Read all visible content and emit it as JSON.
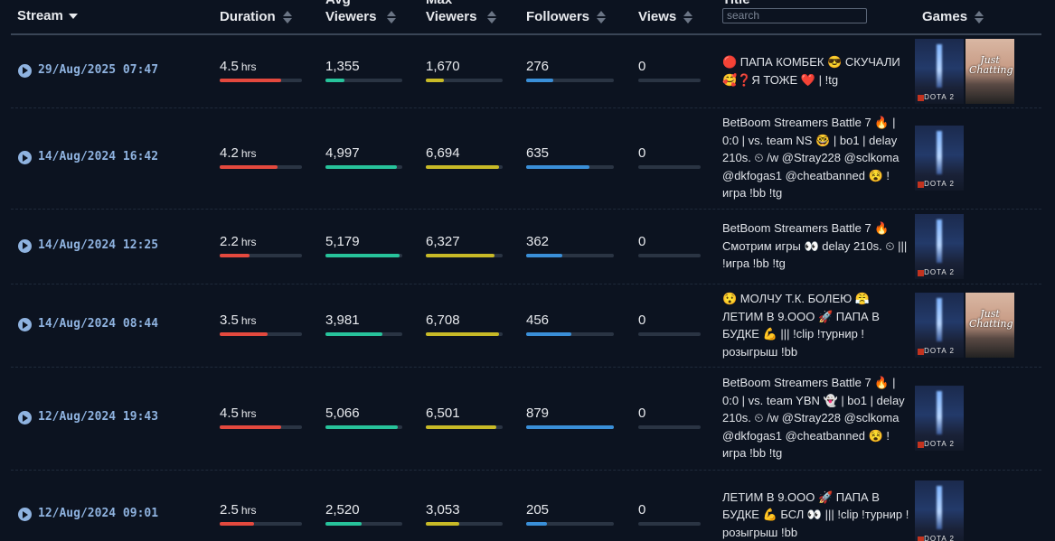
{
  "table": {
    "header": {
      "stream": "Stream",
      "duration": "Duration",
      "avg_viewers": "Avg Viewers",
      "max_viewers": "Max Viewers",
      "followers": "Followers",
      "views": "Views",
      "title": "Title",
      "search_placeholder": "search",
      "games": "Games"
    },
    "duration_unit": "hrs",
    "rows": [
      {
        "stream": "29/Aug/2025 07:47",
        "duration": 4.5,
        "avg_viewers": {
          "value": 1355,
          "label": "1,355"
        },
        "max_viewers": {
          "value": 1670,
          "label": "1,670"
        },
        "followers": 276,
        "views": 0,
        "title": "🔴 ПАПА КОМБЕК 😎 СКУЧАЛИ 🥰❓Я ТОЖЕ ❤️ | !tg",
        "games": [
          "DOTA 2",
          "Just Chatting"
        ]
      },
      {
        "stream": "14/Aug/2024 16:42",
        "duration": 4.2,
        "avg_viewers": {
          "value": 4997,
          "label": "4,997"
        },
        "max_viewers": {
          "value": 6694,
          "label": "6,694"
        },
        "followers": 635,
        "views": 0,
        "title": "BetBoom Streamers Battle 7 🔥 | 0:0 | vs. team NS 🤓 | bo1 | delay 210s. ⏲ /w @Stray228 @sclkoma @dkfogas1 @cheatbanned 😵 ! игра !bb !tg",
        "games": [
          "DOTA 2"
        ]
      },
      {
        "stream": "14/Aug/2024 12:25",
        "duration": 2.2,
        "avg_viewers": {
          "value": 5179,
          "label": "5,179"
        },
        "max_viewers": {
          "value": 6327,
          "label": "6,327"
        },
        "followers": 362,
        "views": 0,
        "title": "BetBoom Streamers Battle 7 🔥 Смотрим игры 👀 delay 210s. ⏲ ||| !игра !bb !tg",
        "games": [
          "DOTA 2"
        ]
      },
      {
        "stream": "14/Aug/2024 08:44",
        "duration": 3.5,
        "avg_viewers": {
          "value": 3981,
          "label": "3,981"
        },
        "max_viewers": {
          "value": 6708,
          "label": "6,708"
        },
        "followers": 456,
        "views": 0,
        "title": "😯 МОЛЧУ Т.К. БОЛЕЮ 😤 ЛЕТИМ В 9.ООО 🚀 ПАПА В БУДКЕ 💪 ||| !clip !турнир ! розыгрыш !bb",
        "games": [
          "DOTA 2",
          "Just Chatting"
        ]
      },
      {
        "stream": "12/Aug/2024 19:43",
        "duration": 4.5,
        "avg_viewers": {
          "value": 5066,
          "label": "5,066"
        },
        "max_viewers": {
          "value": 6501,
          "label": "6,501"
        },
        "followers": 879,
        "views": 0,
        "title": "BetBoom Streamers Battle 7 🔥 | 0:0 | vs. team YBN 👻 | bo1 | delay 210s. ⏲ /w @Stray228 @sclkoma @dkfogas1 @cheatbanned 😵 ! игра !bb !tg",
        "games": [
          "DOTA 2"
        ]
      },
      {
        "stream": "12/Aug/2024 09:01",
        "duration": 2.5,
        "avg_viewers": {
          "value": 2520,
          "label": "2,520"
        },
        "max_viewers": {
          "value": 3053,
          "label": "3,053"
        },
        "followers": 205,
        "views": 0,
        "title": "ЛЕТИМ В 9.ООО 🚀 ПАПА В БУДКЕ 💪 БСЛ 👀 ||| !clip !турнир !розыгрыш !bb",
        "games": [
          "DOTA 2"
        ]
      }
    ]
  }
}
